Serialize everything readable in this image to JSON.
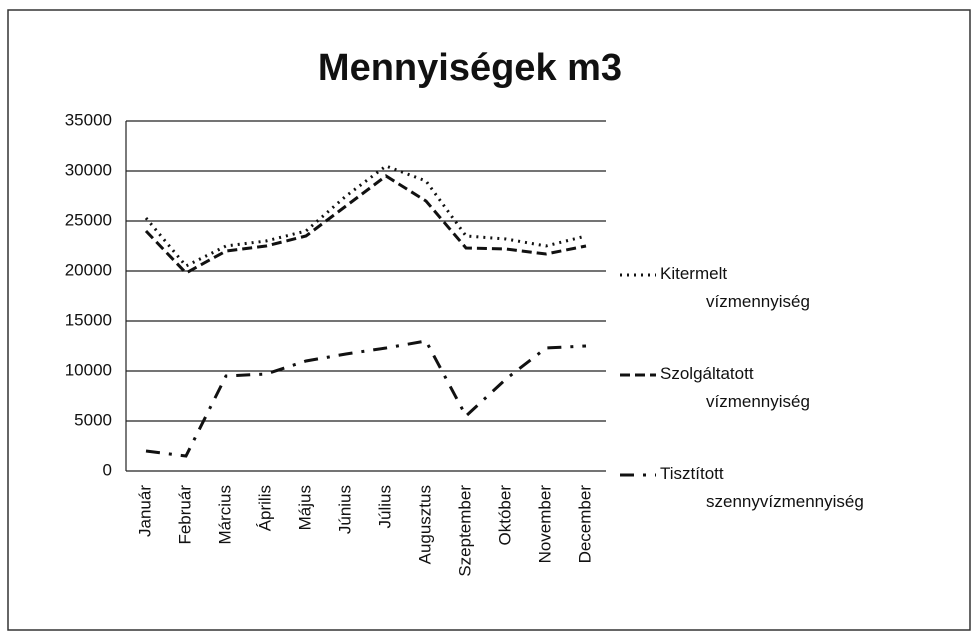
{
  "chart_data": {
    "type": "line",
    "title": "Mennyiségek m3",
    "categories": [
      "Január",
      "Február",
      "Március",
      "Április",
      "Május",
      "Június",
      "Július",
      "Augusztus",
      "Szeptember",
      "Október",
      "November",
      "December"
    ],
    "series": [
      {
        "name": "Kitermelt vízmennyiség",
        "color": "#111111",
        "dash": "2,5",
        "values": [
          25300,
          20500,
          22500,
          23000,
          24000,
          27500,
          30500,
          29000,
          23500,
          23200,
          22500,
          23500
        ]
      },
      {
        "name": "Szolgáltatott vízmennyiség",
        "color": "#111111",
        "dash": "10,5",
        "values": [
          24000,
          19800,
          22000,
          22500,
          23500,
          26500,
          29500,
          27000,
          22300,
          22200,
          21700,
          22500
        ]
      },
      {
        "name": "Tisztított szennyvízmennyiség",
        "color": "#111111",
        "dash": "14,9,3,9",
        "values": [
          2000,
          1500,
          9500,
          9700,
          11000,
          11700,
          12300,
          13000,
          5500,
          9200,
          12300,
          12500
        ]
      }
    ],
    "ylim": [
      0,
      35000
    ],
    "yticks": [
      0,
      5000,
      10000,
      15000,
      20000,
      25000,
      30000,
      35000
    ],
    "grid": true,
    "legend": "right"
  }
}
